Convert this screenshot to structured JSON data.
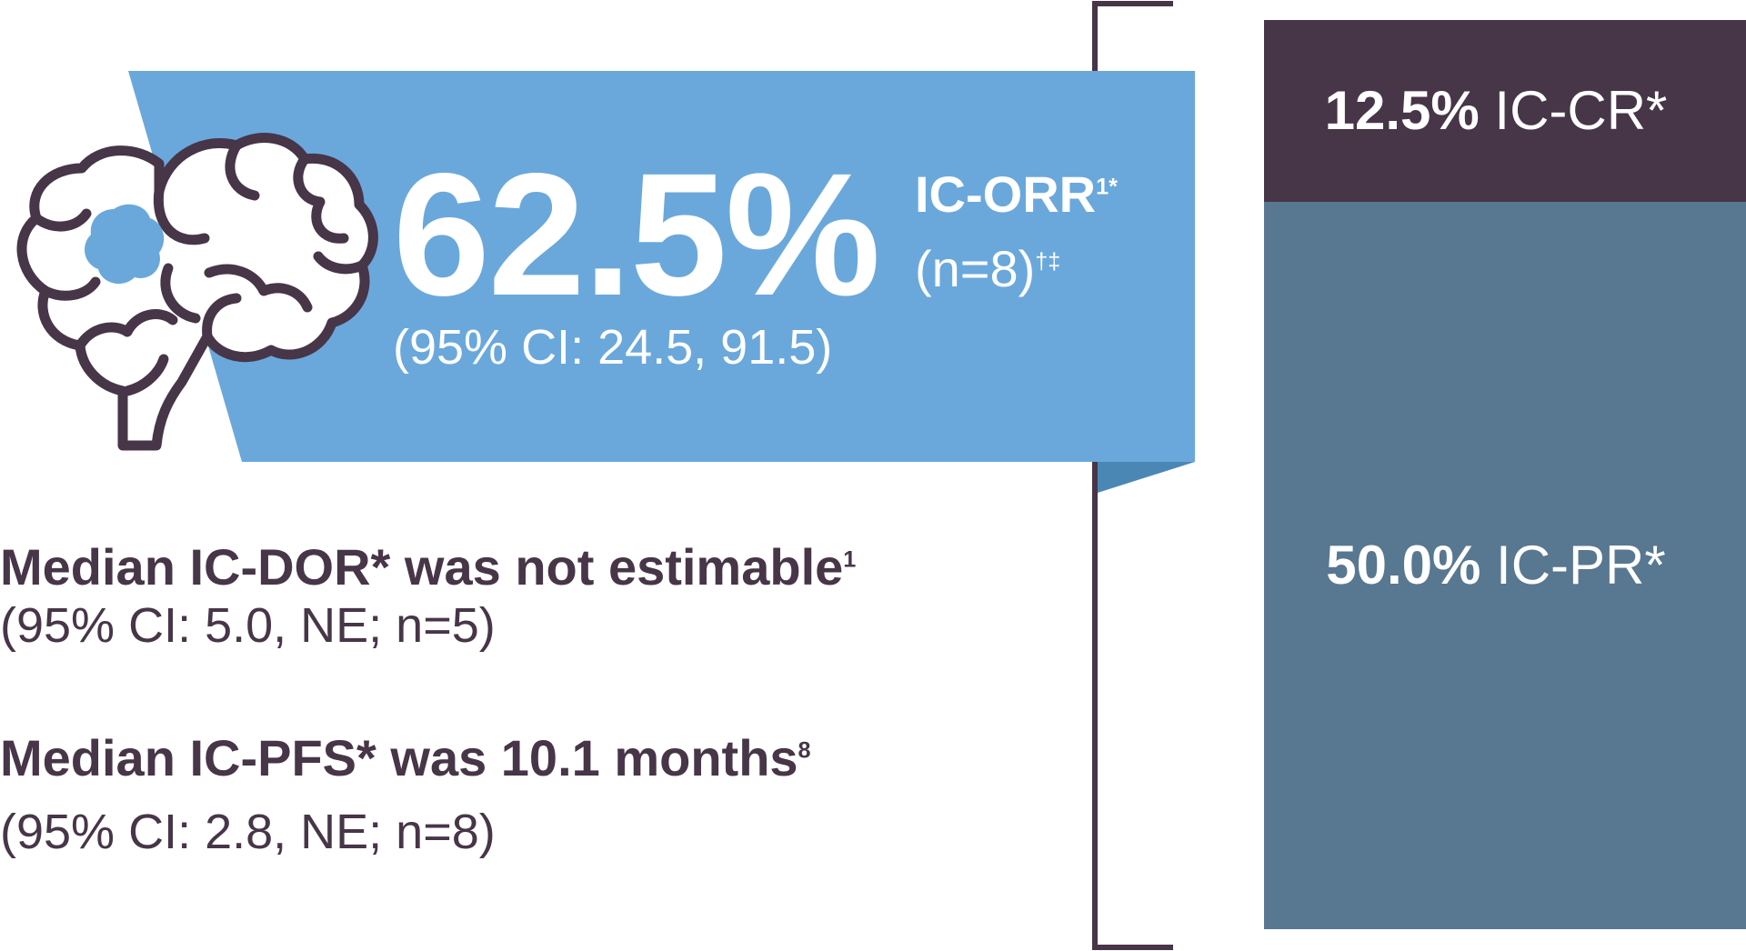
{
  "colors": {
    "banner": "#6aa8dc",
    "banner_fold": "#4b87b5",
    "bracket": "#473548",
    "cr_segment": "#473548",
    "pr_segment": "#587791",
    "text_dark": "#473548",
    "text_light": "#ffffff"
  },
  "icons": {
    "brain": "brain-with-lesion-icon"
  },
  "headline": {
    "value": "62.5%",
    "label": "IC-ORR",
    "label_sup": "1*",
    "n": "(n=8)",
    "n_sup": "†‡",
    "ci": "(95% CI: 24.5, 91.5)"
  },
  "dor": {
    "heading": "Median IC-DOR* was not estimable",
    "heading_sup": "1",
    "ci": "(95% CI: 5.0, NE; n=5)"
  },
  "pfs": {
    "heading": "Median IC-PFS* was 10.1 months",
    "heading_sup": "8",
    "ci": "(95% CI: 2.8, NE; n=8)"
  },
  "chart_data": {
    "type": "bar",
    "stacked": true,
    "unit": "%",
    "total": 62.5,
    "series": [
      {
        "name": "IC-CR*",
        "value": 12.5,
        "display": "12.5%",
        "color": "#473548"
      },
      {
        "name": "IC-PR*",
        "value": 50.0,
        "display": "50.0%",
        "color": "#587791"
      }
    ]
  }
}
